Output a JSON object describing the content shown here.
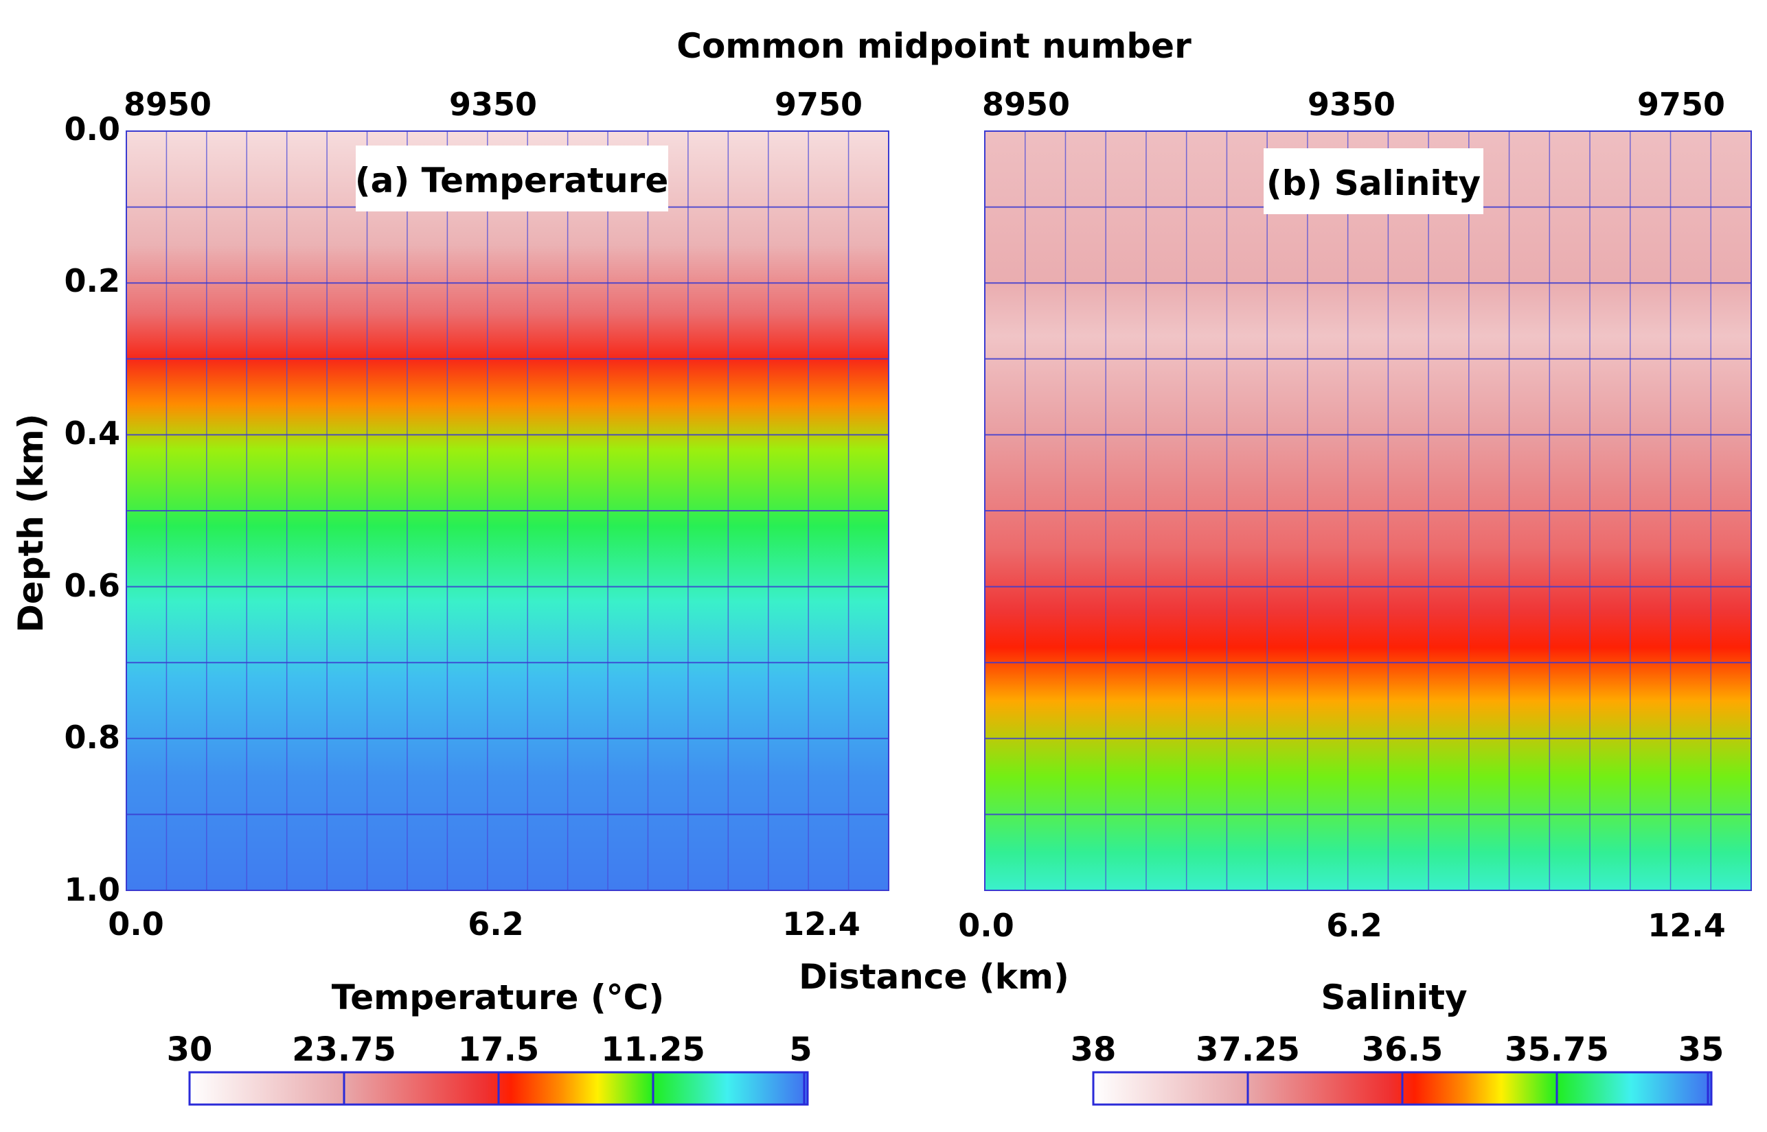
{
  "chart_data": {
    "type": "heatmap",
    "title": "Common midpoint number",
    "ylabel": "Depth (km)",
    "xlabel": "Distance (km)",
    "ylim": [
      0.0,
      1.0
    ],
    "xlim": [
      0.0,
      13.5
    ],
    "y_ticks": [
      "0.0",
      "0.2",
      "0.4",
      "0.6",
      "0.8",
      "1.0"
    ],
    "panels": [
      {
        "label": "(a) Temperature",
        "variable": "temperature",
        "cmp_ticks": [
          "8950",
          "9350",
          "9750"
        ],
        "x_ticks": [
          "0.0",
          "6.2",
          "12.4"
        ],
        "colorbar": {
          "title": "Temperature (°C)",
          "ticks": [
            "30",
            "23.75",
            "17.5",
            "11.25",
            "5"
          ],
          "range": [
            30,
            5
          ]
        },
        "profile": [
          {
            "depth": 0.0,
            "value": 27.5
          },
          {
            "depth": 0.15,
            "value": 24.5
          },
          {
            "depth": 0.24,
            "value": 21.0
          },
          {
            "depth": 0.3,
            "value": 17.5
          },
          {
            "depth": 0.36,
            "value": 15.0
          },
          {
            "depth": 0.42,
            "value": 12.5
          },
          {
            "depth": 0.52,
            "value": 10.5
          },
          {
            "depth": 0.62,
            "value": 8.8
          },
          {
            "depth": 0.72,
            "value": 7.0
          },
          {
            "depth": 0.85,
            "value": 5.8
          },
          {
            "depth": 1.0,
            "value": 5.3
          }
        ]
      },
      {
        "label": "(b) Salinity",
        "variable": "salinity",
        "cmp_ticks": [
          "8950",
          "9350",
          "9750"
        ],
        "x_ticks": [
          "0.0",
          "6.2",
          "12.4"
        ],
        "colorbar": {
          "title": "Salinity",
          "ticks": [
            "38",
            "37.25",
            "36.5",
            "35.75",
            "35"
          ],
          "range": [
            38,
            35
          ]
        },
        "profile": [
          {
            "depth": 0.0,
            "value": 37.45
          },
          {
            "depth": 0.2,
            "value": 37.3
          },
          {
            "depth": 0.27,
            "value": 37.5
          },
          {
            "depth": 0.4,
            "value": 37.2
          },
          {
            "depth": 0.55,
            "value": 36.9
          },
          {
            "depth": 0.63,
            "value": 36.6
          },
          {
            "depth": 0.68,
            "value": 36.45
          },
          {
            "depth": 0.75,
            "value": 36.15
          },
          {
            "depth": 0.85,
            "value": 35.85
          },
          {
            "depth": 0.95,
            "value": 35.55
          },
          {
            "depth": 1.0,
            "value": 35.45
          }
        ]
      }
    ]
  }
}
